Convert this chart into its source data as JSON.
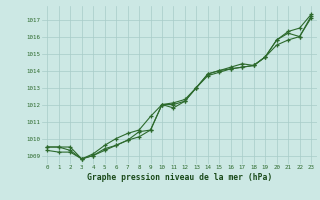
{
  "bg_color": "#cce8e4",
  "grid_color": "#a8ccc8",
  "line_color": "#2d6a2d",
  "marker_color": "#2d6a2d",
  "xlabel": "Graphe pression niveau de la mer (hPa)",
  "xlabel_color": "#1a4a1a",
  "ylim": [
    1008.5,
    1017.8
  ],
  "xlim": [
    -0.5,
    23.5
  ],
  "yticks": [
    1009,
    1010,
    1011,
    1012,
    1013,
    1014,
    1015,
    1016,
    1017
  ],
  "xticks": [
    0,
    1,
    2,
    3,
    4,
    5,
    6,
    7,
    8,
    9,
    10,
    11,
    12,
    13,
    14,
    15,
    16,
    17,
    18,
    19,
    20,
    21,
    22,
    23
  ],
  "line1": [
    1009.5,
    1009.5,
    1009.5,
    1008.8,
    1009.0,
    1009.3,
    1009.6,
    1009.9,
    1010.1,
    1010.5,
    1012.0,
    1012.1,
    1012.3,
    1013.0,
    1013.8,
    1014.0,
    1014.1,
    1014.2,
    1014.3,
    1014.8,
    1015.8,
    1016.3,
    1016.5,
    1017.3
  ],
  "line2": [
    1009.3,
    1009.2,
    1009.2,
    1008.8,
    1009.0,
    1009.4,
    1009.6,
    1009.9,
    1010.4,
    1010.5,
    1012.0,
    1012.0,
    1012.2,
    1013.0,
    1013.8,
    1014.0,
    1014.2,
    1014.4,
    1014.3,
    1014.8,
    1015.8,
    1016.2,
    1016.0,
    1017.1
  ],
  "line3": [
    1009.5,
    1009.5,
    1009.3,
    1008.8,
    1009.1,
    1009.6,
    1010.0,
    1010.3,
    1010.5,
    1011.3,
    1012.0,
    1011.8,
    1012.2,
    1013.0,
    1013.7,
    1013.9,
    1014.1,
    1014.2,
    1014.3,
    1014.8,
    1015.5,
    1015.8,
    1016.0,
    1017.2
  ]
}
